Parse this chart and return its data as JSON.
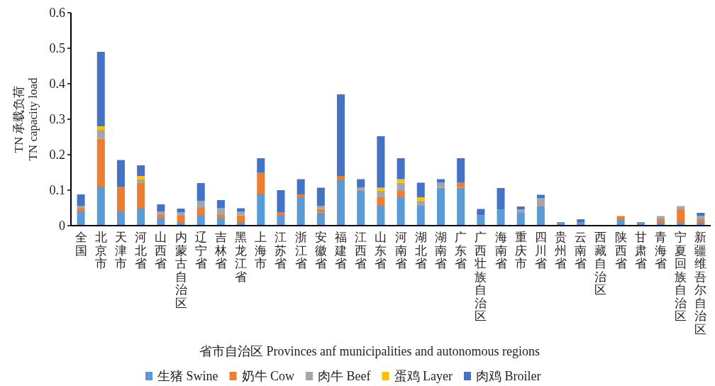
{
  "chart_data": {
    "type": "bar",
    "stacked": true,
    "ylabel": "TN 承载负荷\nTN capacity load",
    "xlabel": "省市自治区 Provinces anf municipalities and autonomous regions",
    "categories": [
      "全国",
      "北京市",
      "天津市",
      "河北省",
      "山西省",
      "内蒙古自治区",
      "辽宁省",
      "吉林省",
      "黑龙江省",
      "上海市",
      "江苏省",
      "浙江省",
      "安徽省",
      "福建省",
      "江西省",
      "山东省",
      "河南省",
      "湖北省",
      "湖南省",
      "广东省",
      "广西壮族自治区",
      "海南省",
      "重庆市",
      "四川省",
      "贵州省",
      "云南省",
      "西藏自治区",
      "陕西省",
      "甘肃省",
      "青海省",
      "宁夏回族自治区",
      "新疆维吾尔自治区"
    ],
    "series": [
      {
        "name": "生猪 Swine",
        "color": "#5b9bd5",
        "values": [
          0.04,
          0.11,
          0.04,
          0.05,
          0.02,
          0.01,
          0.03,
          0.02,
          0.01,
          0.09,
          0.03,
          0.08,
          0.037,
          0.13,
          0.098,
          0.056,
          0.08,
          0.056,
          0.107,
          0.107,
          0.029,
          0.045,
          0.036,
          0.054,
          0.01,
          0.01,
          null,
          0.018,
          0.01,
          0.01,
          0.01,
          0.01
        ]
      },
      {
        "name": "奶牛 Cow",
        "color": "#ed7d31",
        "values": [
          0.008,
          0.135,
          0.07,
          0.07,
          0.01,
          0.018,
          0.02,
          0.01,
          0.019,
          0.06,
          0.008,
          0.008,
          0.01,
          0.01,
          null,
          0.024,
          0.018,
          null,
          null,
          0.014,
          null,
          null,
          null,
          null,
          null,
          null,
          null,
          0.009,
          null,
          0.008,
          0.036,
          0.008
        ]
      },
      {
        "name": "肉牛 Beef",
        "color": "#a5a5a5",
        "values": [
          0.008,
          0.025,
          null,
          0.01,
          0.01,
          0.01,
          0.02,
          0.02,
          0.01,
          null,
          null,
          null,
          0.009,
          null,
          0.009,
          0.018,
          0.023,
          0.015,
          0.014,
          null,
          null,
          null,
          0.01,
          0.024,
          null,
          null,
          null,
          null,
          null,
          0.009,
          0.009,
          0.009
        ]
      },
      {
        "name": "蛋鸡 Layer",
        "color": "#ffc000",
        "values": [
          null,
          0.01,
          null,
          0.01,
          null,
          null,
          null,
          null,
          null,
          null,
          null,
          null,
          null,
          null,
          null,
          0.009,
          0.01,
          0.009,
          null,
          null,
          null,
          null,
          null,
          null,
          null,
          null,
          null,
          null,
          null,
          null,
          null,
          null
        ]
      },
      {
        "name": "肉鸡 Broiler",
        "color": "#4472c4",
        "values": [
          0.032,
          0.21,
          0.075,
          0.03,
          0.02,
          0.01,
          0.05,
          0.022,
          0.01,
          0.04,
          0.062,
          0.043,
          0.051,
          0.23,
          0.024,
          0.145,
          0.059,
          0.041,
          0.01,
          0.069,
          0.018,
          0.061,
          0.008,
          0.009,
          null,
          0.008,
          null,
          null,
          null,
          null,
          null,
          0.009
        ]
      }
    ],
    "ylim": [
      0,
      0.6
    ],
    "yticks": [
      0,
      0.1,
      0.2,
      0.3,
      0.4,
      0.5,
      0.6
    ],
    "legend": "bottom"
  }
}
